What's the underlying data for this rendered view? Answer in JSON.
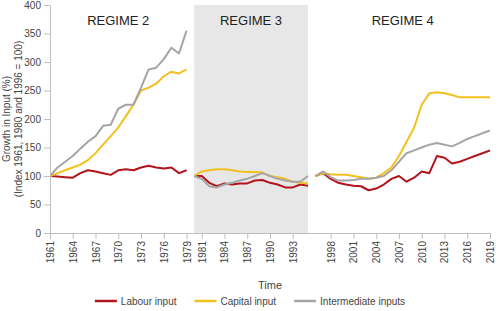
{
  "chart_data": {
    "type": "line",
    "x_label": "Time",
    "y_label": [
      "Growth in Input (%)",
      "(Index 1961, 1980 and 1996 = 100)"
    ],
    "x": [
      1961,
      1962,
      1963,
      1964,
      1965,
      1966,
      1967,
      1968,
      1969,
      1970,
      1971,
      1972,
      1973,
      1974,
      1975,
      1976,
      1977,
      1978,
      1979,
      1980,
      1981,
      1982,
      1983,
      1984,
      1985,
      1986,
      1987,
      1988,
      1989,
      1990,
      1991,
      1992,
      1993,
      1994,
      1995,
      1996,
      1997,
      1998,
      1999,
      2000,
      2001,
      2002,
      2003,
      2004,
      2005,
      2006,
      2007,
      2008,
      2009,
      2010,
      2011,
      2012,
      2013,
      2014,
      2015,
      2016,
      2017,
      2018,
      2019
    ],
    "xlim": [
      1961,
      2019
    ],
    "xticks": [
      1961,
      1964,
      1967,
      1970,
      1973,
      1976,
      1979,
      1981,
      1984,
      1987,
      1990,
      1993,
      1998,
      2001,
      2004,
      2007,
      2010,
      2013,
      2016,
      2019
    ],
    "ylim": [
      0,
      400
    ],
    "yticks": [
      0,
      50,
      100,
      150,
      200,
      250,
      300,
      350,
      400
    ],
    "grid": false,
    "legend": "bottom",
    "regimes": [
      {
        "label": "REGIME 2",
        "start": 1961,
        "end": 1979
      },
      {
        "label": "REGIME 3",
        "start": 1980,
        "end": 1995,
        "color": "#e7e7e7"
      },
      {
        "label": "REGIME 4",
        "start": 1996,
        "end": 2019
      }
    ],
    "series": [
      {
        "name": "Labour input",
        "color": "#b3141c",
        "values": [
          100,
          99,
          98,
          97,
          105,
          110,
          108,
          105,
          102,
          110,
          112,
          110,
          115,
          118,
          115,
          113,
          115,
          105,
          110,
          100,
          100,
          88,
          82,
          87,
          85,
          87,
          87,
          92,
          93,
          88,
          85,
          80,
          80,
          85,
          83,
          100,
          105,
          95,
          88,
          85,
          83,
          82,
          75,
          78,
          85,
          95,
          100,
          90,
          97,
          108,
          105,
          135,
          132,
          122,
          125,
          130,
          135,
          140,
          145
        ]
      },
      {
        "name": "Capital input",
        "color": "#f4c01e",
        "values": [
          100,
          105,
          110,
          115,
          120,
          128,
          140,
          155,
          170,
          185,
          205,
          225,
          250,
          255,
          262,
          275,
          283,
          280,
          287,
          100,
          108,
          110,
          112,
          112,
          110,
          108,
          107,
          107,
          106,
          100,
          98,
          95,
          90,
          88,
          87,
          100,
          105,
          103,
          102,
          102,
          100,
          98,
          95,
          97,
          105,
          115,
          135,
          160,
          185,
          225,
          245,
          247,
          245,
          242,
          238,
          238,
          238,
          238,
          238
        ]
      },
      {
        "name": "Intermediate inputs",
        "color": "#a5a5a5",
        "values": [
          100,
          115,
          125,
          135,
          148,
          160,
          170,
          188,
          190,
          218,
          225,
          225,
          255,
          287,
          290,
          305,
          325,
          315,
          355,
          100,
          95,
          82,
          80,
          85,
          88,
          92,
          95,
          100,
          105,
          100,
          95,
          92,
          90,
          90,
          100,
          100,
          108,
          98,
          92,
          92,
          93,
          95,
          95,
          97,
          100,
          110,
          125,
          140,
          145,
          150,
          155,
          158,
          155,
          152,
          158,
          165,
          170,
          175,
          180
        ]
      }
    ]
  }
}
